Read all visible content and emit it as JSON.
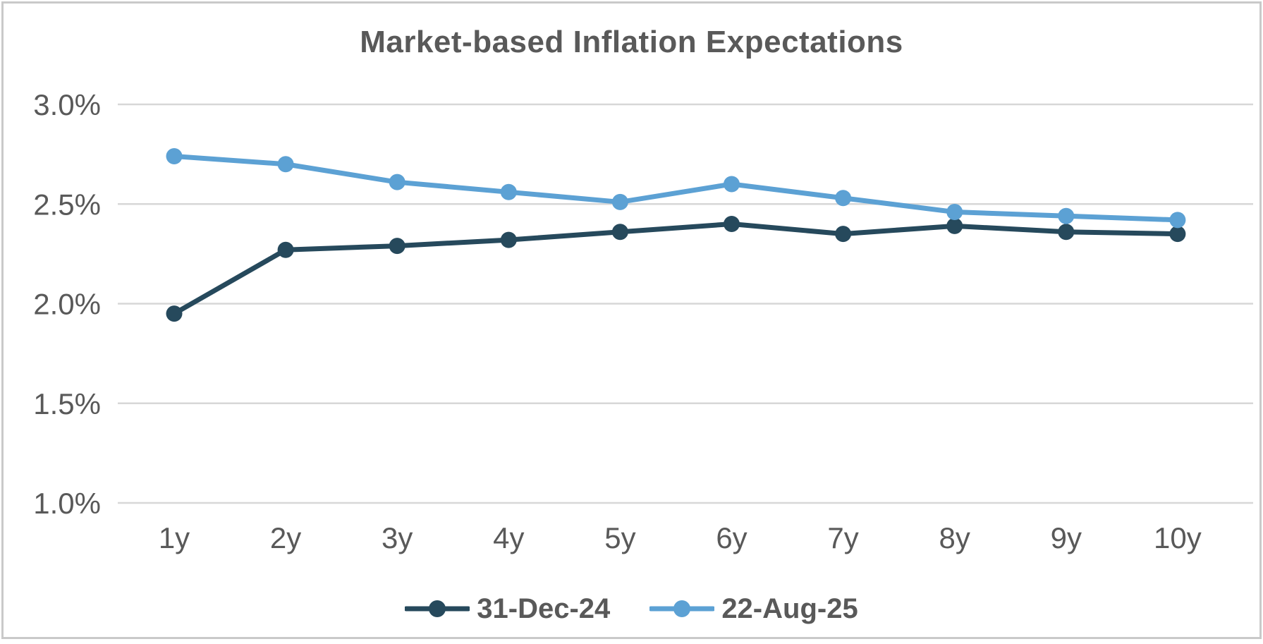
{
  "chart_data": {
    "type": "line",
    "title": "Market-based Inflation Expectations",
    "categories": [
      "1y",
      "2y",
      "3y",
      "4y",
      "5y",
      "6y",
      "7y",
      "8y",
      "9y",
      "10y"
    ],
    "series": [
      {
        "name": "31-Dec-24",
        "color": "#26495C",
        "values": [
          1.95,
          2.27,
          2.29,
          2.32,
          2.36,
          2.4,
          2.35,
          2.39,
          2.36,
          2.35
        ]
      },
      {
        "name": "22-Aug-25",
        "color": "#5CA1D4",
        "values": [
          2.74,
          2.7,
          2.61,
          2.56,
          2.51,
          2.6,
          2.53,
          2.46,
          2.44,
          2.42
        ]
      }
    ],
    "ylim": [
      1.0,
      3.0
    ],
    "yticks": [
      {
        "value": 1.0,
        "label": "1.0%"
      },
      {
        "value": 1.5,
        "label": "1.5%"
      },
      {
        "value": 2.0,
        "label": "2.0%"
      },
      {
        "value": 2.5,
        "label": "2.5%"
      },
      {
        "value": 3.0,
        "label": "3.0%"
      }
    ],
    "grid": true,
    "legend_position": "bottom",
    "colors": {
      "text": "#595959",
      "gridline": "#D7D7D7",
      "frame_border": "#C9C9C9",
      "background": "#FFFFFF"
    }
  }
}
